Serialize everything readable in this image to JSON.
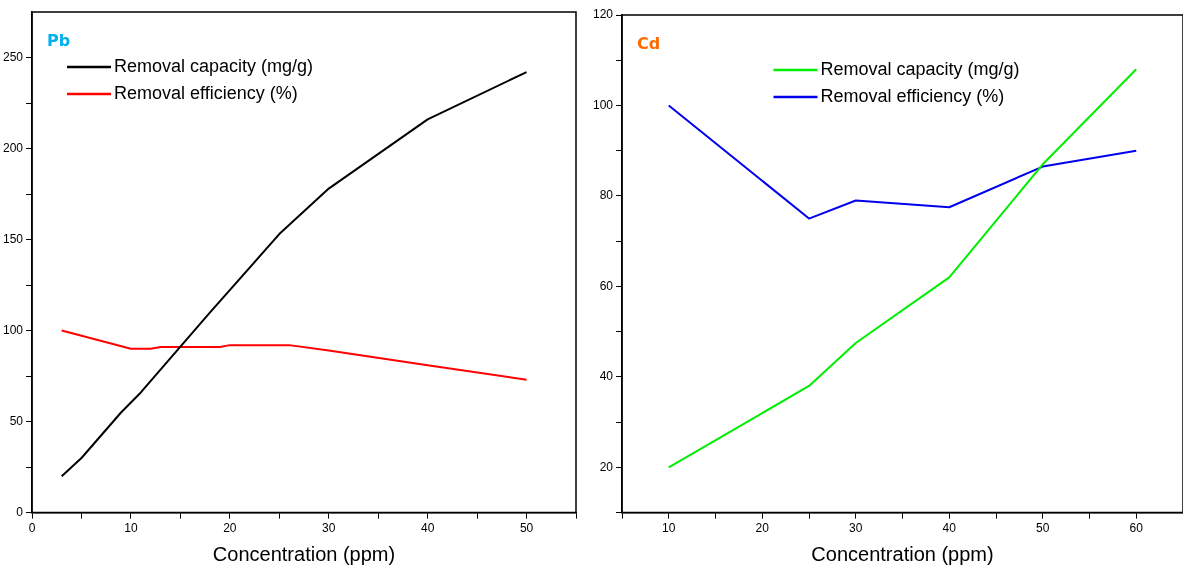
{
  "chart_data": [
    {
      "type": "line",
      "title": "Pb",
      "xlabel": "Concentration (ppm)",
      "legend": "top left",
      "grid": false,
      "xlim": [
        0,
        55
      ],
      "xticks": [
        0,
        {
          "value": 5,
          "label": null
        },
        10,
        {
          "value": 15,
          "label": null
        },
        20,
        {
          "value": 25,
          "label": null
        },
        30,
        {
          "value": 35,
          "label": null
        },
        40,
        {
          "value": 45,
          "label": null
        },
        50,
        {
          "value": 55,
          "label": null
        }
      ],
      "ylim": [
        0,
        275
      ],
      "yticks": [
        0,
        {
          "value": 25,
          "label": null
        },
        50,
        {
          "value": 75,
          "label": null
        },
        100,
        {
          "value": 125,
          "label": null
        },
        150,
        {
          "value": 175,
          "label": null
        },
        200,
        {
          "value": 225,
          "label": null
        },
        250
      ],
      "series": [
        {
          "name": "Removal capacity (mg/g)",
          "color": "#000000",
          "x": [
            3,
            5,
            9,
            11,
            18,
            25,
            30,
            40,
            50
          ],
          "values": [
            20,
            30,
            55,
            66,
            110,
            153,
            178,
            216,
            242
          ]
        },
        {
          "name": "Removal efficiency (%)",
          "color": "#ff0000",
          "x": [
            3,
            10,
            12,
            13,
            19,
            20,
            26,
            30,
            40,
            50
          ],
          "values": [
            100,
            90,
            90,
            91,
            91,
            92,
            92,
            89,
            81,
            73
          ]
        }
      ]
    },
    {
      "type": "line",
      "title": "Cd",
      "xlabel": "Concentration (ppm)",
      "legend": "top",
      "grid": false,
      "xlim": [
        5,
        65
      ],
      "xticks": [
        {
          "value": 5,
          "label": null
        },
        10,
        {
          "value": 15,
          "label": null
        },
        20,
        {
          "value": 25,
          "label": null
        },
        30,
        {
          "value": 35,
          "label": null
        },
        40,
        {
          "value": 45,
          "label": null
        },
        50,
        {
          "value": 55,
          "label": null
        },
        60
      ],
      "ylim": [
        10,
        120
      ],
      "yticks": [
        {
          "value": 10,
          "label": null
        },
        20,
        {
          "value": 30,
          "label": null
        },
        40,
        {
          "value": 50,
          "label": null
        },
        60,
        {
          "value": 70,
          "label": null
        },
        80,
        {
          "value": 90,
          "label": null
        },
        100,
        {
          "value": 110,
          "label": null
        },
        120
      ],
      "series": [
        {
          "name": "Removal capacity (mg/g)",
          "color": "#00ee00",
          "x": [
            10,
            25,
            30,
            40,
            50,
            60
          ],
          "values": [
            20,
            38,
            47.5,
            62,
            87,
            108
          ]
        },
        {
          "name": "Removal efficiency (%)",
          "color": "#0000ee",
          "x": [
            10,
            25,
            30,
            40,
            50,
            60
          ],
          "values": [
            100,
            75,
            79,
            77.5,
            86.5,
            90
          ]
        }
      ]
    }
  ]
}
